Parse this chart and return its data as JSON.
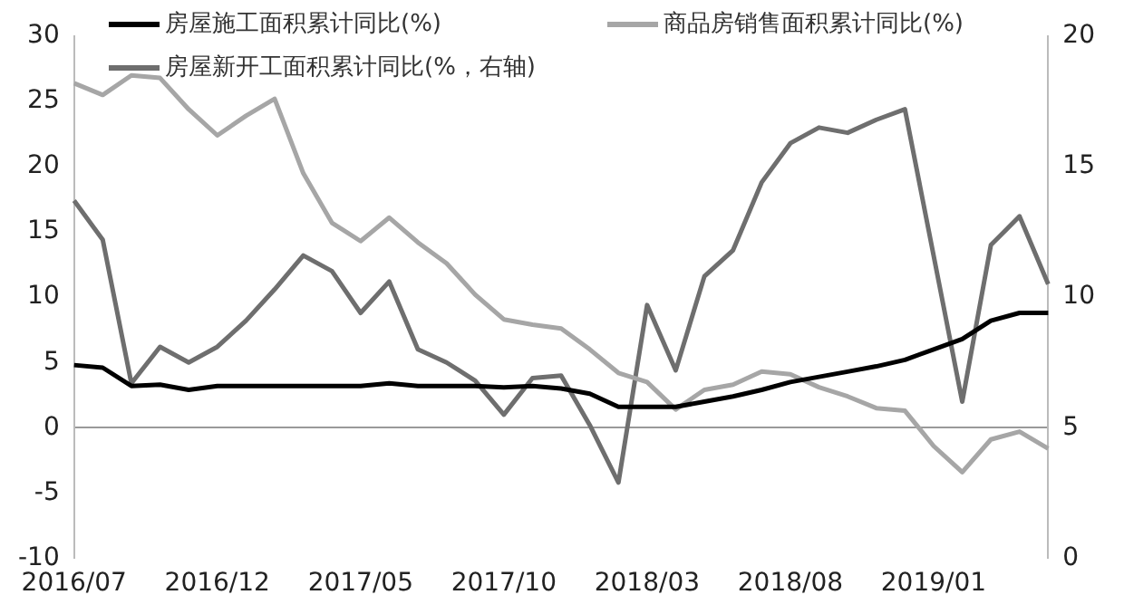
{
  "chart_data": {
    "type": "line",
    "marker": "none",
    "legend": "top",
    "categories": [
      "2016/07",
      null,
      null,
      null,
      null,
      "2016/12",
      null,
      null,
      null,
      null,
      "2017/05",
      null,
      null,
      null,
      null,
      "2017/10",
      null,
      null,
      null,
      null,
      "2018/03",
      null,
      null,
      null,
      null,
      "2018/08",
      null,
      null,
      null,
      null,
      "2019/01",
      null,
      null,
      null,
      null
    ],
    "ylim": [
      -10,
      30
    ],
    "yticks": [
      -10,
      -5,
      0,
      5,
      10,
      15,
      20,
      25,
      30
    ],
    "y2lim": [
      0,
      20
    ],
    "y2ticks": [
      0,
      5,
      10,
      15,
      20
    ],
    "series": [
      {
        "name": "房屋施工面积累计同比(%)",
        "color": "#000000",
        "values": [
          4.8,
          4.6,
          3.2,
          3.3,
          2.9,
          3.2,
          3.2,
          3.2,
          3.2,
          3.2,
          3.2,
          3.4,
          3.2,
          3.2,
          3.2,
          3.1,
          3.2,
          3.0,
          2.6,
          1.6,
          1.6,
          1.6,
          2.0,
          2.4,
          2.9,
          3.5,
          3.9,
          4.3,
          4.7,
          5.2,
          6.0,
          6.8,
          8.2,
          8.8,
          8.8
        ]
      },
      {
        "name": "商品房销售面积累计同比(%)",
        "color": "#a6a6a6",
        "values": [
          26.4,
          25.5,
          27.0,
          26.8,
          24.4,
          22.4,
          23.9,
          25.2,
          19.5,
          15.7,
          14.3,
          16.1,
          14.2,
          12.6,
          10.2,
          8.3,
          7.9,
          7.6,
          6.0,
          4.2,
          3.5,
          1.4,
          2.9,
          3.3,
          4.3,
          4.1,
          3.1,
          2.4,
          1.5,
          1.3,
          -1.4,
          -3.4,
          -0.9,
          -0.3,
          -1.6
        ]
      },
      {
        "name": "房屋新开工面积累计同比(%，右轴)",
        "color": "#6e6e6e",
        "axis": "y2",
        "values": [
          13.7,
          12.2,
          6.7,
          8.1,
          7.5,
          8.1,
          9.1,
          10.3,
          11.6,
          11.0,
          9.4,
          10.6,
          8.0,
          7.5,
          6.8,
          5.5,
          6.9,
          7.0,
          5.1,
          2.9,
          9.7,
          7.2,
          10.8,
          11.8,
          14.4,
          15.9,
          16.5,
          16.3,
          16.8,
          17.2,
          null,
          6.0,
          12.0,
          13.1,
          10.5
        ]
      }
    ]
  }
}
